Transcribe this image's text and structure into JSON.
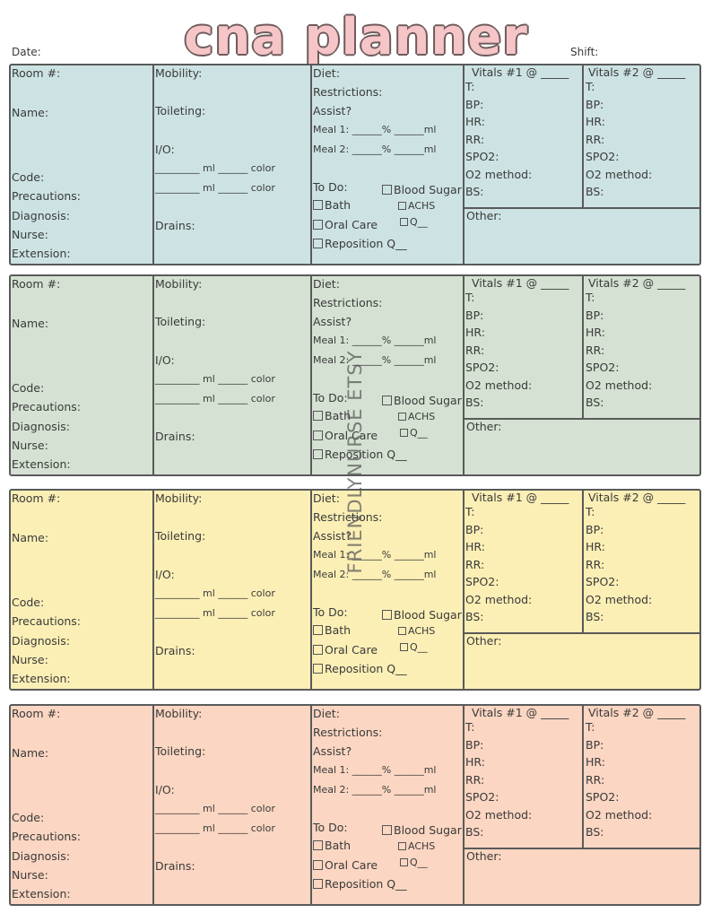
{
  "title": "cna planner",
  "header": {
    "date_label": "Date:",
    "shift_label": "Shift:"
  },
  "watermark": "FRIENDLYNURSE ETSY",
  "colors": {
    "block1": "#cde3e3",
    "block2": "#d5e2d3",
    "block3": "#fbefb5",
    "block4": "#fbd6c2",
    "title": "#f6c5c8"
  },
  "labels": {
    "room": "Room #:",
    "name": "Name:",
    "code": "Code:",
    "precautions": "Precautions:",
    "diagnosis": "Diagnosis:",
    "nurse": "Nurse:",
    "extension": "Extension:",
    "mobility": "Mobility:",
    "toileting": "Toileting:",
    "io": "I/O:",
    "io_line1": "_________ ml ______ color",
    "io_line2": "_________ ml ______ color",
    "drains": "Drains:",
    "diet": "Diet:",
    "restrictions": "Restrictions:",
    "assist": "Assist?",
    "meal1": "Meal 1: ______% ______ml",
    "meal2": "Meal 2: ______% ______ml",
    "todo": "To Do:",
    "blood_sugar": "Blood Sugar",
    "achs": "ACHS",
    "q": "Q__",
    "bath": "Bath",
    "oral_care": "Oral Care",
    "reposition": "Reposition Q__",
    "vitals1": "Vitals #1 @ _____",
    "vitals2": "Vitals #2 @ _____",
    "t": "T:",
    "bp": "BP:",
    "hr": "HR:",
    "rr": "RR:",
    "spo2": "SPO2:",
    "o2": "O2 method:",
    "bs": "BS:",
    "other": "Other:"
  }
}
